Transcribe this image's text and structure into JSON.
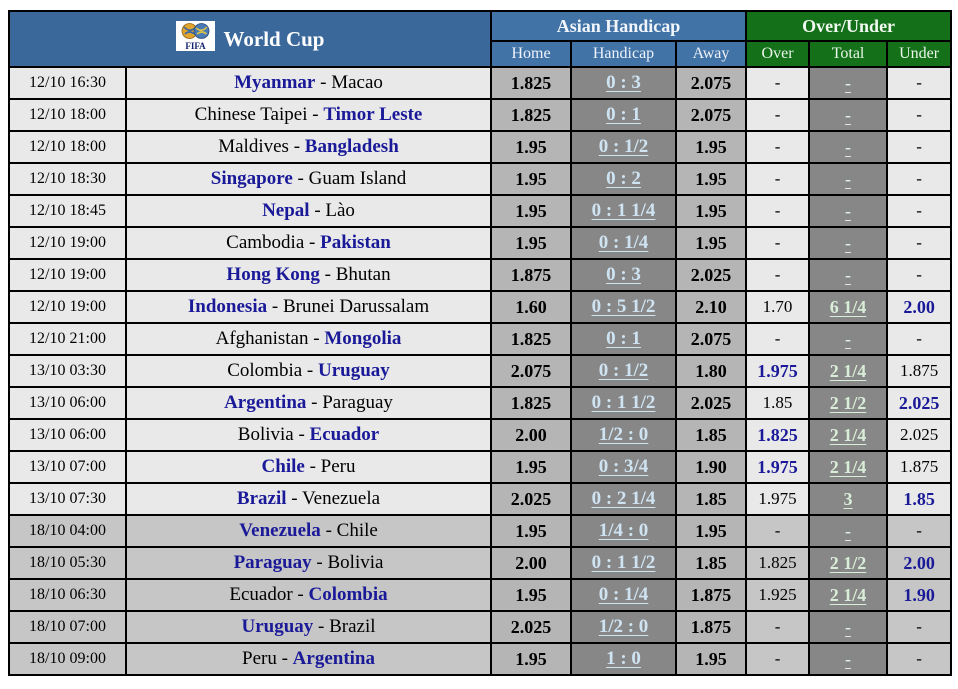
{
  "header": {
    "title": "World Cup",
    "logo": "fifa-logo",
    "logo_text": "FIFA",
    "asian_handicap_label": "Asian Handicap",
    "over_under_label": "Over/Under",
    "sub_home": "Home",
    "sub_handicap": "Handicap",
    "sub_away": "Away",
    "sub_over": "Over",
    "sub_total": "Total",
    "sub_under": "Under"
  },
  "colors": {
    "header-blue": "#3a689b",
    "sub-blue": "#4273a7",
    "header-green": "#15701a",
    "navy": "#1a1a99",
    "pale-blue": "#cfe4f2",
    "pale-green": "#d9eed9",
    "gray-odds": "#b5b5b5",
    "gray-dark": "#878787",
    "row-light": "#e9e9e9",
    "row-dark": "#c6c6c6"
  },
  "rows": [
    {
      "time": "12/10 16:30",
      "home_team": "Myanmar",
      "away_team": "Macao",
      "favorite": "home",
      "ah_home": "1.825",
      "handicap": "0 : 3",
      "ah_away": "2.075",
      "over": "-",
      "total": "-",
      "under": "-",
      "over_strong": false,
      "under_strong": false,
      "shade": "light"
    },
    {
      "time": "12/10 18:00",
      "home_team": "Chinese Taipei",
      "away_team": "Timor Leste",
      "favorite": "away",
      "ah_home": "1.825",
      "handicap": "0 : 1",
      "ah_away": "2.075",
      "over": "-",
      "total": "-",
      "under": "-",
      "over_strong": false,
      "under_strong": false,
      "shade": "light"
    },
    {
      "time": "12/10 18:00",
      "home_team": "Maldives",
      "away_team": "Bangladesh",
      "favorite": "away",
      "ah_home": "1.95",
      "handicap": "0 : 1/2",
      "ah_away": "1.95",
      "over": "-",
      "total": "-",
      "under": "-",
      "over_strong": false,
      "under_strong": false,
      "shade": "light"
    },
    {
      "time": "12/10 18:30",
      "home_team": "Singapore",
      "away_team": "Guam Island",
      "favorite": "home",
      "ah_home": "1.95",
      "handicap": "0 : 2",
      "ah_away": "1.95",
      "over": "-",
      "total": "-",
      "under": "-",
      "over_strong": false,
      "under_strong": false,
      "shade": "light"
    },
    {
      "time": "12/10 18:45",
      "home_team": "Nepal",
      "away_team": "Lào",
      "favorite": "home",
      "ah_home": "1.95",
      "handicap": "0 : 1 1/4",
      "ah_away": "1.95",
      "over": "-",
      "total": "-",
      "under": "-",
      "over_strong": false,
      "under_strong": false,
      "shade": "light"
    },
    {
      "time": "12/10 19:00",
      "home_team": "Cambodia",
      "away_team": "Pakistan",
      "favorite": "away",
      "ah_home": "1.95",
      "handicap": "0 : 1/4",
      "ah_away": "1.95",
      "over": "-",
      "total": "-",
      "under": "-",
      "over_strong": false,
      "under_strong": false,
      "shade": "light"
    },
    {
      "time": "12/10 19:00",
      "home_team": "Hong Kong",
      "away_team": "Bhutan",
      "favorite": "home",
      "ah_home": "1.875",
      "handicap": "0 : 3",
      "ah_away": "2.025",
      "over": "-",
      "total": "-",
      "under": "-",
      "over_strong": false,
      "under_strong": false,
      "shade": "light"
    },
    {
      "time": "12/10 19:00",
      "home_team": "Indonesia",
      "away_team": "Brunei Darussalam",
      "favorite": "home",
      "ah_home": "1.60",
      "handicap": "0 : 5 1/2",
      "ah_away": "2.10",
      "over": "1.70",
      "total": "6 1/4",
      "under": "2.00",
      "over_strong": false,
      "under_strong": true,
      "shade": "light"
    },
    {
      "time": "12/10 21:00",
      "home_team": "Afghanistan",
      "away_team": "Mongolia",
      "favorite": "away",
      "ah_home": "1.825",
      "handicap": "0 : 1",
      "ah_away": "2.075",
      "over": "-",
      "total": "-",
      "under": "-",
      "over_strong": false,
      "under_strong": false,
      "shade": "light"
    },
    {
      "time": "13/10 03:30",
      "home_team": "Colombia",
      "away_team": "Uruguay",
      "favorite": "away",
      "ah_home": "2.075",
      "handicap": "0 : 1/2",
      "ah_away": "1.80",
      "over": "1.975",
      "total": "2 1/4",
      "under": "1.875",
      "over_strong": true,
      "under_strong": false,
      "shade": "light"
    },
    {
      "time": "13/10 06:00",
      "home_team": "Argentina",
      "away_team": "Paraguay",
      "favorite": "home",
      "ah_home": "1.825",
      "handicap": "0 : 1 1/2",
      "ah_away": "2.025",
      "over": "1.85",
      "total": "2 1/2",
      "under": "2.025",
      "over_strong": false,
      "under_strong": true,
      "shade": "light"
    },
    {
      "time": "13/10 06:00",
      "home_team": "Bolivia",
      "away_team": "Ecuador",
      "favorite": "away",
      "ah_home": "2.00",
      "handicap": "1/2 : 0",
      "ah_away": "1.85",
      "over": "1.825",
      "total": "2 1/4",
      "under": "2.025",
      "over_strong": true,
      "under_strong": false,
      "shade": "light"
    },
    {
      "time": "13/10 07:00",
      "home_team": "Chile",
      "away_team": "Peru",
      "favorite": "home",
      "ah_home": "1.95",
      "handicap": "0 : 3/4",
      "ah_away": "1.90",
      "over": "1.975",
      "total": "2 1/4",
      "under": "1.875",
      "over_strong": true,
      "under_strong": false,
      "shade": "light"
    },
    {
      "time": "13/10 07:30",
      "home_team": "Brazil",
      "away_team": "Venezuela",
      "favorite": "home",
      "ah_home": "2.025",
      "handicap": "0 : 2 1/4",
      "ah_away": "1.85",
      "over": "1.975",
      "total": "3",
      "under": "1.85",
      "over_strong": false,
      "under_strong": true,
      "shade": "light"
    },
    {
      "time": "18/10 04:00",
      "home_team": "Venezuela",
      "away_team": "Chile",
      "favorite": "home",
      "ah_home": "1.95",
      "handicap": "1/4 : 0",
      "ah_away": "1.95",
      "over": "-",
      "total": "-",
      "under": "-",
      "over_strong": false,
      "under_strong": false,
      "shade": "dark"
    },
    {
      "time": "18/10 05:30",
      "home_team": "Paraguay",
      "away_team": "Bolivia",
      "favorite": "home",
      "ah_home": "2.00",
      "handicap": "0 : 1 1/2",
      "ah_away": "1.85",
      "over": "1.825",
      "total": "2 1/2",
      "under": "2.00",
      "over_strong": false,
      "under_strong": true,
      "shade": "dark"
    },
    {
      "time": "18/10 06:30",
      "home_team": "Ecuador",
      "away_team": "Colombia",
      "favorite": "away",
      "ah_home": "1.95",
      "handicap": "0 : 1/4",
      "ah_away": "1.875",
      "over": "1.925",
      "total": "2 1/4",
      "under": "1.90",
      "over_strong": false,
      "under_strong": true,
      "shade": "dark"
    },
    {
      "time": "18/10 07:00",
      "home_team": "Uruguay",
      "away_team": "Brazil",
      "favorite": "home",
      "ah_home": "2.025",
      "handicap": "1/2 : 0",
      "ah_away": "1.875",
      "over": "-",
      "total": "-",
      "under": "-",
      "over_strong": false,
      "under_strong": false,
      "shade": "dark"
    },
    {
      "time": "18/10 09:00",
      "home_team": "Peru",
      "away_team": "Argentina",
      "favorite": "away",
      "ah_home": "1.95",
      "handicap": "1 : 0",
      "ah_away": "1.95",
      "over": "-",
      "total": "-",
      "under": "-",
      "over_strong": false,
      "under_strong": false,
      "shade": "dark"
    }
  ]
}
